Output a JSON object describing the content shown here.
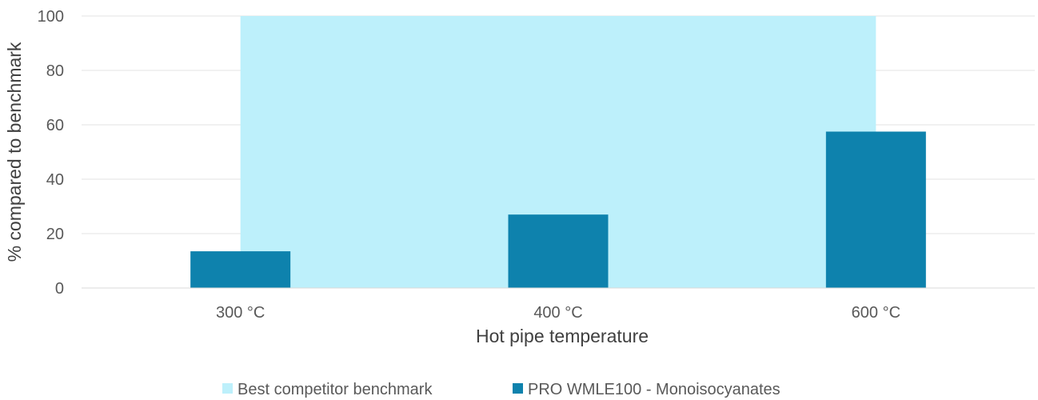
{
  "chart_data": {
    "type": "area+bar",
    "title": "",
    "xlabel": "Hot pipe temperature",
    "ylabel": "% compared to benchmark",
    "categories": [
      "300 °C",
      "400 °C",
      "600 °C"
    ],
    "ylim": [
      0,
      100
    ],
    "yticks": [
      0,
      20,
      40,
      60,
      80,
      100
    ],
    "grid": true,
    "legend_position": "bottom",
    "series": [
      {
        "name": "Best competitor benchmark",
        "type": "area",
        "values": [
          100,
          100,
          100
        ],
        "color": "#bdf0fb"
      },
      {
        "name": "PRO WMLE100 - Monoisocyanates",
        "type": "bar",
        "values": [
          13.5,
          27,
          57.5
        ],
        "color": "#0e82ad"
      }
    ]
  }
}
